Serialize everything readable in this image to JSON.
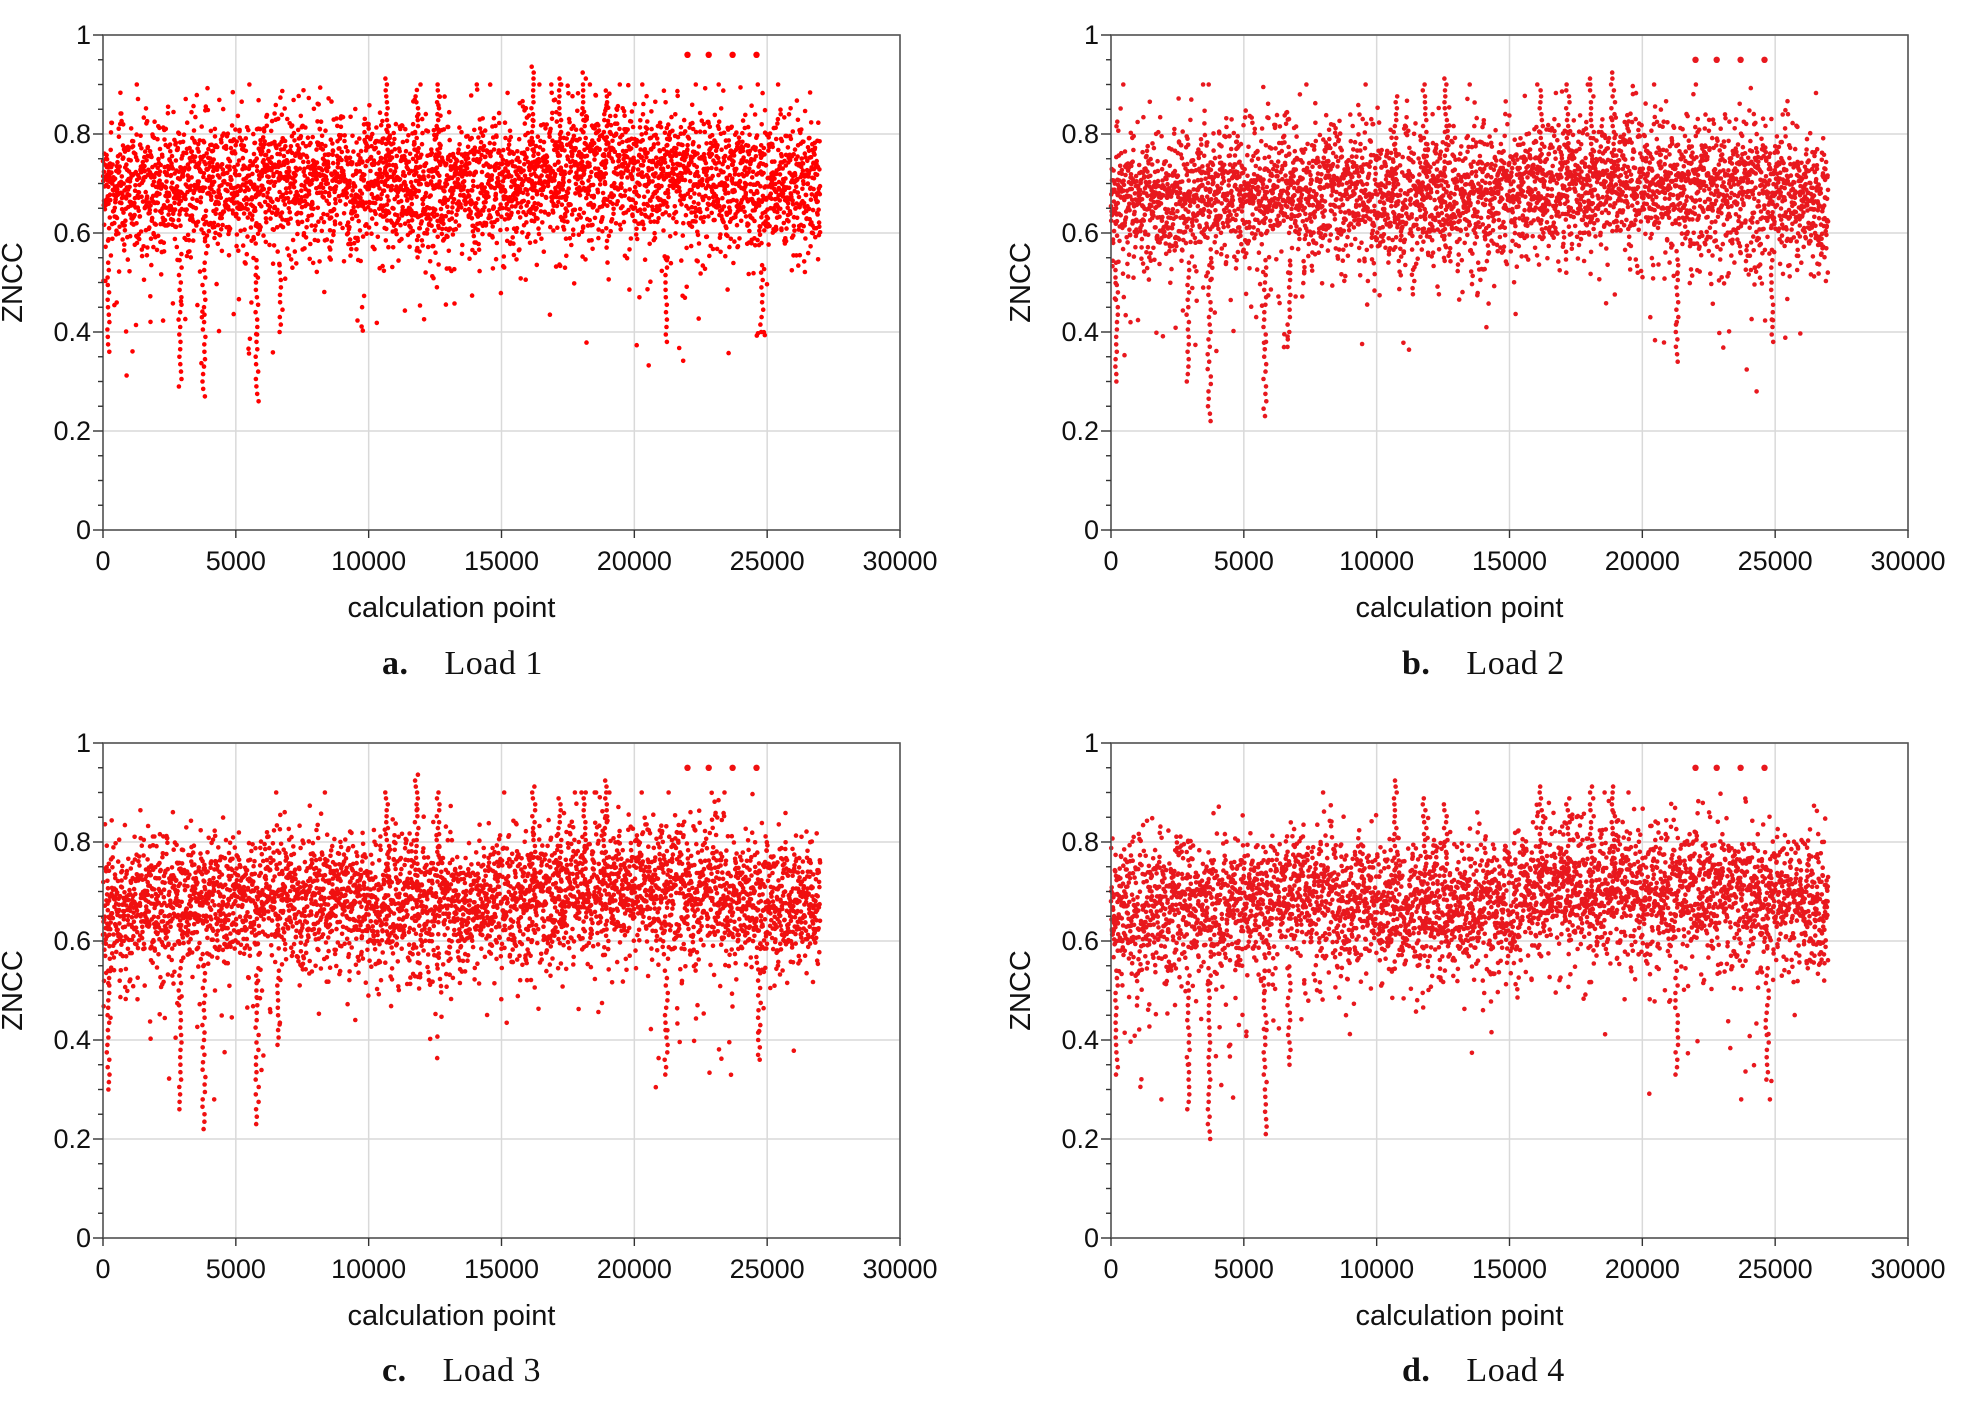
{
  "chart_data": [
    {
      "type": "scatter",
      "panel_letter": "a.",
      "caption": "Load 1",
      "xlabel": "calculation point",
      "ylabel": "ZNCC",
      "xlim": [
        0,
        30000
      ],
      "ylim": [
        0,
        1
      ],
      "xticks": [
        "0",
        "5000",
        "10000",
        "15000",
        "20000",
        "25000",
        "30000"
      ],
      "yticks": [
        "0",
        "0.2",
        "0.4",
        "0.6",
        "0.8",
        "1"
      ],
      "grid": true,
      "color": "#ff0000",
      "n_points": 27000,
      "band": {
        "mean": 0.7,
        "spread": 0.09
      },
      "outliers_low": [
        [
          3800,
          0.27
        ],
        [
          5800,
          0.26
        ],
        [
          2900,
          0.29
        ],
        [
          6700,
          0.4
        ],
        [
          21200,
          0.38
        ],
        [
          24800,
          0.4
        ],
        [
          200,
          0.36
        ]
      ],
      "high_dots": [
        [
          22000,
          0.96
        ],
        [
          22800,
          0.96
        ],
        [
          23700,
          0.96
        ],
        [
          24600,
          0.96
        ]
      ]
    },
    {
      "type": "scatter",
      "panel_letter": "b.",
      "caption": "Load 2",
      "xlabel": "calculation point",
      "ylabel": "ZNCC",
      "xlim": [
        0,
        30000
      ],
      "ylim": [
        0,
        1
      ],
      "xticks": [
        "0",
        "5000",
        "10000",
        "15000",
        "20000",
        "25000",
        "30000"
      ],
      "yticks": [
        "0",
        "0.2",
        "0.4",
        "0.6",
        "0.8",
        "1"
      ],
      "grid": true,
      "color": "#e8181e",
      "n_points": 27000,
      "band": {
        "mean": 0.68,
        "spread": 0.09
      },
      "outliers_low": [
        [
          3700,
          0.22
        ],
        [
          5800,
          0.23
        ],
        [
          2900,
          0.3
        ],
        [
          6700,
          0.37
        ],
        [
          21300,
          0.34
        ],
        [
          24900,
          0.38
        ],
        [
          200,
          0.3
        ]
      ],
      "high_dots": [
        [
          22000,
          0.95
        ],
        [
          22800,
          0.95
        ],
        [
          23700,
          0.95
        ],
        [
          24600,
          0.95
        ]
      ]
    },
    {
      "type": "scatter",
      "panel_letter": "c.",
      "caption": "Load 3",
      "xlabel": "calculation point",
      "ylabel": "ZNCC",
      "xlim": [
        0,
        30000
      ],
      "ylim": [
        0,
        1
      ],
      "xticks": [
        "0",
        "5000",
        "10000",
        "15000",
        "20000",
        "25000",
        "30000"
      ],
      "yticks": [
        "0",
        "0.2",
        "0.4",
        "0.6",
        "0.8",
        "1"
      ],
      "grid": true,
      "color": "#f01010",
      "n_points": 27000,
      "band": {
        "mean": 0.68,
        "spread": 0.09
      },
      "outliers_low": [
        [
          3800,
          0.22
        ],
        [
          5800,
          0.23
        ],
        [
          2900,
          0.26
        ],
        [
          6600,
          0.39
        ],
        [
          21200,
          0.33
        ],
        [
          24700,
          0.37
        ],
        [
          200,
          0.3
        ]
      ],
      "high_dots": [
        [
          22000,
          0.95
        ],
        [
          22800,
          0.95
        ],
        [
          23700,
          0.95
        ],
        [
          24600,
          0.95
        ]
      ]
    },
    {
      "type": "scatter",
      "panel_letter": "d.",
      "caption": "Load 4",
      "xlabel": "calculation point",
      "ylabel": "ZNCC",
      "xlim": [
        0,
        30000
      ],
      "ylim": [
        0,
        1
      ],
      "xticks": [
        "0",
        "5000",
        "10000",
        "15000",
        "20000",
        "25000",
        "30000"
      ],
      "yticks": [
        "0",
        "0.2",
        "0.4",
        "0.6",
        "0.8",
        "1"
      ],
      "grid": true,
      "color": "#e8181e",
      "n_points": 27000,
      "band": {
        "mean": 0.68,
        "spread": 0.09
      },
      "outliers_low": [
        [
          3700,
          0.2
        ],
        [
          5800,
          0.21
        ],
        [
          2900,
          0.26
        ],
        [
          6700,
          0.35
        ],
        [
          21300,
          0.33
        ],
        [
          24700,
          0.32
        ],
        [
          200,
          0.33
        ]
      ],
      "high_dots": [
        [
          22000,
          0.95
        ],
        [
          22800,
          0.95
        ],
        [
          23700,
          0.95
        ],
        [
          24600,
          0.95
        ]
      ]
    }
  ]
}
